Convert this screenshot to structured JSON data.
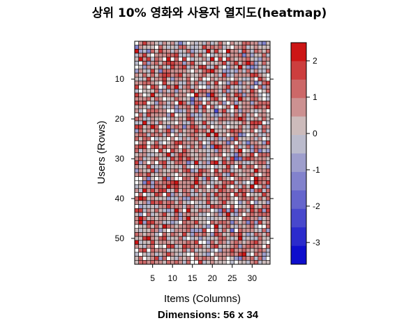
{
  "chart_data": {
    "type": "heatmap",
    "title": "상위 10% 영화와 사용자 열지도(heatmap)",
    "xlabel": "Items (Columns)",
    "ylabel": "Users (Rows)",
    "subtitle": "Dimensions: 56 x 34",
    "rows": 56,
    "cols": 34,
    "x_ticks": [
      "5",
      "10",
      "15",
      "20",
      "25",
      "30"
    ],
    "x_tick_values": [
      5,
      10,
      15,
      20,
      25,
      30
    ],
    "y_ticks": [
      "10",
      "20",
      "30",
      "40",
      "50"
    ],
    "y_tick_values": [
      10,
      20,
      30,
      40,
      50
    ],
    "colorbar": {
      "range": [
        -3.6,
        2.5
      ],
      "ticks": [
        "2",
        "1",
        "0",
        "-1",
        "-2",
        "-3"
      ],
      "tick_values": [
        2,
        1,
        0,
        -1,
        -2,
        -3
      ],
      "low_color": "#0000cc",
      "mid_color": "#cccccc",
      "high_color": "#cc0000"
    },
    "missing_color": "#ffffff",
    "grid_color": "#000000",
    "value_distribution": "mostly positive values (light to mid red) with scattered grey near zero, occasional blue negatives and white missing cells"
  }
}
